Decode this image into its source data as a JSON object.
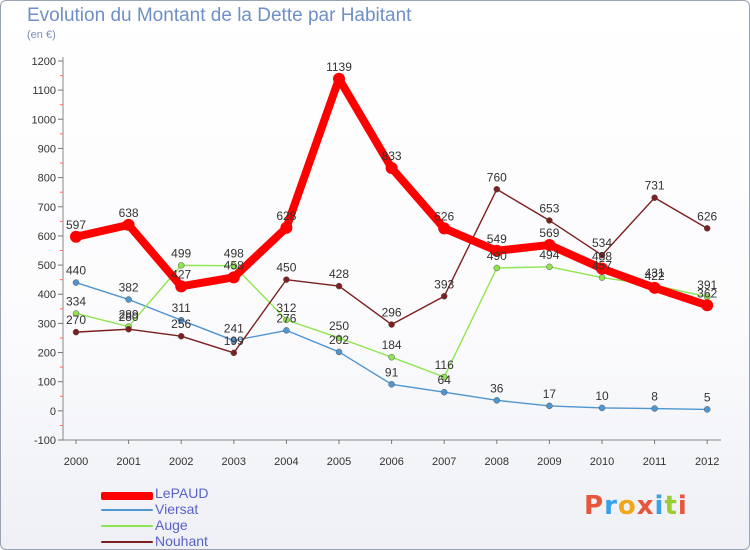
{
  "title": "Evolution du Montant de la Dette par Habitant",
  "subtitle": "(en €)",
  "chart_data": {
    "type": "line",
    "x": [
      "2000",
      "2001",
      "2002",
      "2003",
      "2004",
      "2005",
      "2006",
      "2007",
      "2008",
      "2009",
      "2010",
      "2011",
      "2012"
    ],
    "ylim": [
      -100,
      1200
    ],
    "yticks": [
      -100,
      0,
      100,
      200,
      300,
      400,
      500,
      600,
      700,
      800,
      900,
      1000,
      1100,
      1200
    ],
    "grid": false,
    "legend_position": "bottom-left",
    "series": [
      {
        "name": "LePAUD",
        "color": "#ff0000",
        "values": [
          597,
          638,
          427,
          458,
          628,
          1139,
          833,
          626,
          549,
          569,
          488,
          422,
          362
        ]
      },
      {
        "name": "Viersat",
        "color": "#4f95d0",
        "values": [
          440,
          382,
          311,
          241,
          276,
          202,
          91,
          64,
          36,
          17,
          10,
          8,
          5
        ]
      },
      {
        "name": "Auge",
        "color": "#8fe54f",
        "values": [
          334,
          289,
          499,
          498,
          312,
          250,
          184,
          116,
          490,
          494,
          457,
          431,
          391
        ]
      },
      {
        "name": "Nouhant",
        "color": "#7b1f1f",
        "values": [
          270,
          280,
          256,
          199,
          450,
          428,
          296,
          393,
          760,
          653,
          534,
          731,
          626
        ]
      }
    ]
  },
  "logo": {
    "text": "Proxiti",
    "colors": [
      "#e8553a",
      "#3aa0e8",
      "#f2a71b",
      "#e8553a",
      "#3aa0e8",
      "#9acd32",
      "#e8553a"
    ]
  }
}
